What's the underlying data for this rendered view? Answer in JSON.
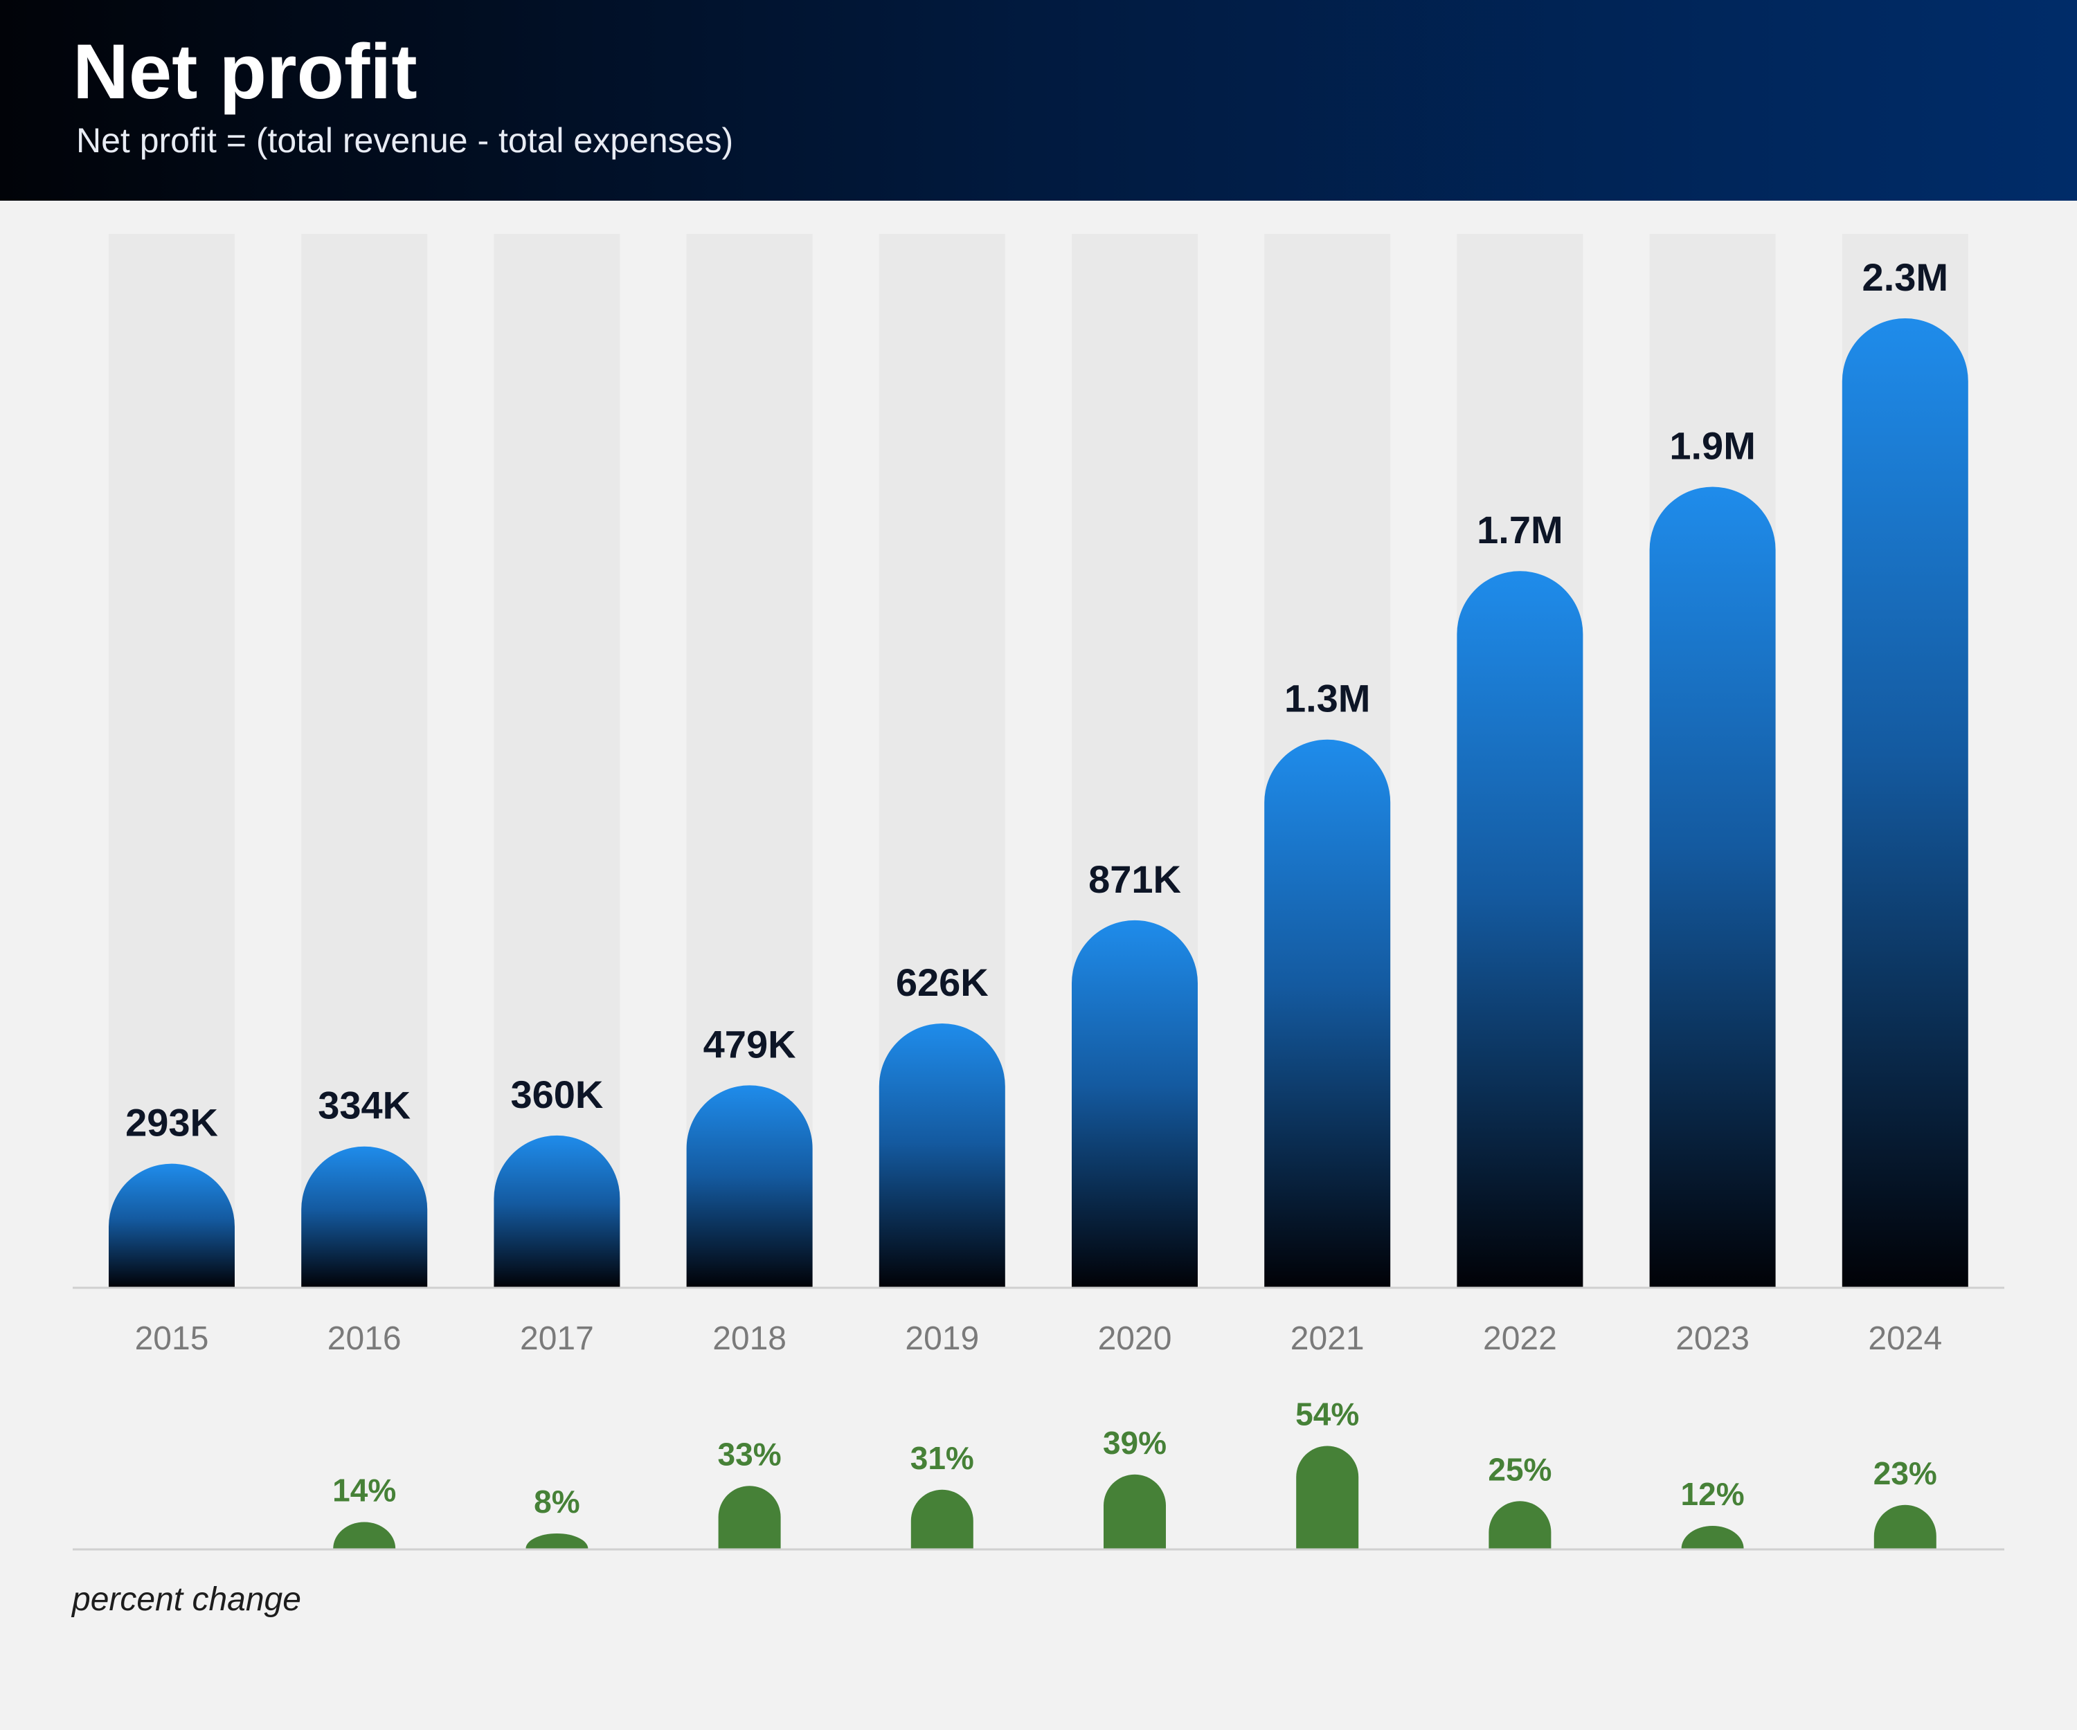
{
  "header": {
    "title": "Net profit",
    "subtitle": "Net profit = (total revenue - total expenses)"
  },
  "colors": {
    "header_start": "#010308",
    "header_end": "#002c69",
    "bar_top": "#1f8ceb",
    "bar_bottom": "#010207",
    "track": "#e9e9e9",
    "value_label": "#0d1526",
    "year_label": "#7a7a7a",
    "change_bar": "#468137",
    "change_label": "#468137",
    "baseline": "#d0d0d0"
  },
  "footnote": "percent change",
  "chart_data": [
    {
      "type": "bar",
      "categories": [
        "2015",
        "2016",
        "2017",
        "2018",
        "2019",
        "2020",
        "2021",
        "2022",
        "2023",
        "2024"
      ],
      "values": [
        293000,
        334000,
        360000,
        479000,
        626000,
        871000,
        1300000,
        1700000,
        1900000,
        2300000
      ],
      "value_labels": [
        "293K",
        "334K",
        "360K",
        "479K",
        "626K",
        "871K",
        "1.3M",
        "1.7M",
        "1.9M",
        "2.3M"
      ],
      "ylim": [
        0,
        2500000
      ],
      "grid": false
    },
    {
      "type": "bar",
      "categories": [
        "2015",
        "2016",
        "2017",
        "2018",
        "2019",
        "2020",
        "2021",
        "2022",
        "2023",
        "2024"
      ],
      "values": [
        null,
        14,
        8,
        33,
        31,
        39,
        54,
        25,
        12,
        23
      ],
      "value_labels": [
        "",
        "14%",
        "8%",
        "33%",
        "31%",
        "39%",
        "54%",
        "25%",
        "12%",
        "23%"
      ],
      "ylim": [
        0,
        60
      ],
      "grid": false
    }
  ]
}
